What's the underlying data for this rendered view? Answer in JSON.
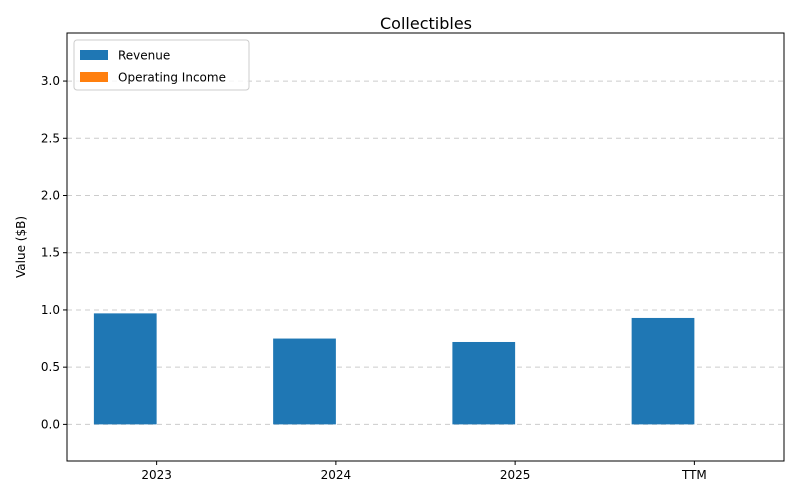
{
  "chart_data": {
    "type": "bar",
    "title": "Collectibles",
    "xlabel": "",
    "ylabel": "Value ($B)",
    "categories": [
      "2023",
      "2024",
      "2025",
      "TTM"
    ],
    "series": [
      {
        "name": "Revenue",
        "color": "#1f77b4",
        "values": [
          0.97,
          0.75,
          0.72,
          0.93
        ]
      },
      {
        "name": "Operating Income",
        "color": "#ff7f0e",
        "values": [
          0,
          0,
          0,
          0
        ]
      }
    ],
    "ylim": [
      -0.32,
      3.42
    ],
    "yticks": [
      0.0,
      0.5,
      1.0,
      1.5,
      2.0,
      2.5,
      3.0
    ],
    "ytick_labels": [
      "0.0",
      "0.5",
      "1.0",
      "1.5",
      "2.0",
      "2.5",
      "3.0"
    ],
    "grid": "y-dashed",
    "legend_position": "top-left"
  }
}
